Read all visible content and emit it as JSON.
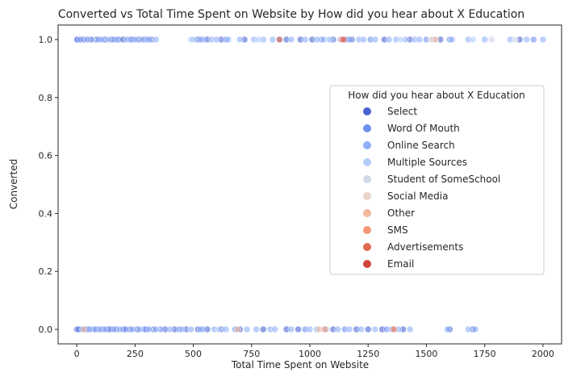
{
  "chart_data": {
    "type": "scatter",
    "title": "Converted vs Total Time Spent on Website by How did you hear about X Education",
    "xlabel": "Total Time Spent on Website",
    "ylabel": "Converted",
    "xlim": [
      -80,
      2080
    ],
    "ylim": [
      -0.05,
      1.05
    ],
    "xticks": [
      0,
      250,
      500,
      750,
      1000,
      1250,
      1500,
      1750,
      2000
    ],
    "xtick_labels": [
      "0",
      "250",
      "500",
      "750",
      "1000",
      "1250",
      "1500",
      "1750",
      "2000"
    ],
    "yticks": [
      0.0,
      0.2,
      0.4,
      0.6,
      0.8,
      1.0
    ],
    "ytick_labels": [
      "0.0",
      "0.2",
      "0.4",
      "0.6",
      "0.8",
      "1.0"
    ],
    "grid": false,
    "legend": {
      "title": "How did you hear about X Education",
      "placement": "center-right"
    },
    "series": [
      {
        "name": "Select",
        "color": "#4a63d3",
        "points": [
          [
            0,
            1
          ],
          [
            5,
            1
          ],
          [
            12,
            1
          ],
          [
            28,
            1
          ],
          [
            60,
            1
          ],
          [
            85,
            1
          ],
          [
            120,
            1
          ],
          [
            150,
            1
          ],
          [
            180,
            1
          ],
          [
            200,
            1
          ],
          [
            240,
            1
          ],
          [
            265,
            1
          ],
          [
            290,
            1
          ],
          [
            320,
            1
          ],
          [
            520,
            1
          ],
          [
            560,
            1
          ],
          [
            620,
            1
          ],
          [
            720,
            1
          ],
          [
            900,
            1
          ],
          [
            960,
            1
          ],
          [
            1010,
            1
          ],
          [
            1100,
            1
          ],
          [
            1180,
            1
          ],
          [
            1320,
            1
          ],
          [
            1430,
            1
          ],
          [
            1560,
            1
          ],
          [
            1900,
            1
          ],
          [
            0,
            0
          ],
          [
            3,
            0
          ],
          [
            10,
            0
          ],
          [
            20,
            0
          ],
          [
            35,
            0
          ],
          [
            50,
            0
          ],
          [
            70,
            0
          ],
          [
            90,
            0
          ],
          [
            110,
            0
          ],
          [
            130,
            0
          ],
          [
            150,
            0
          ],
          [
            170,
            0
          ],
          [
            200,
            0
          ],
          [
            230,
            0
          ],
          [
            260,
            0
          ],
          [
            300,
            0
          ],
          [
            330,
            0
          ],
          [
            380,
            0
          ],
          [
            420,
            0
          ],
          [
            470,
            0
          ],
          [
            520,
            0
          ],
          [
            560,
            0
          ],
          [
            620,
            0
          ],
          [
            700,
            0
          ],
          [
            800,
            0
          ],
          [
            900,
            0
          ],
          [
            950,
            0
          ],
          [
            1100,
            0
          ],
          [
            1200,
            0
          ],
          [
            1250,
            0
          ],
          [
            1310,
            0
          ],
          [
            1400,
            0
          ],
          [
            1600,
            0
          ],
          [
            1700,
            0
          ]
        ]
      },
      {
        "name": "Word Of Mouth",
        "color": "#6f90f0",
        "points": [
          [
            2,
            1
          ],
          [
            45,
            1
          ],
          [
            95,
            1
          ],
          [
            160,
            1
          ],
          [
            230,
            1
          ],
          [
            300,
            1
          ],
          [
            540,
            1
          ],
          [
            640,
            1
          ],
          [
            870,
            1
          ],
          [
            1050,
            1
          ],
          [
            1170,
            1
          ],
          [
            1260,
            1
          ],
          [
            1500,
            1
          ],
          [
            1600,
            1
          ],
          [
            1960,
            1
          ],
          [
            8,
            0
          ],
          [
            40,
            0
          ],
          [
            75,
            0
          ],
          [
            140,
            0
          ],
          [
            210,
            0
          ],
          [
            290,
            0
          ],
          [
            360,
            0
          ],
          [
            440,
            0
          ],
          [
            540,
            0
          ],
          [
            680,
            0
          ],
          [
            980,
            0
          ],
          [
            1150,
            0
          ],
          [
            1330,
            0
          ]
        ]
      },
      {
        "name": "Online Search",
        "color": "#8fb0f8",
        "points": [
          [
            15,
            1
          ],
          [
            65,
            1
          ],
          [
            105,
            1
          ],
          [
            135,
            1
          ],
          [
            170,
            1
          ],
          [
            215,
            1
          ],
          [
            250,
            1
          ],
          [
            280,
            1
          ],
          [
            310,
            1
          ],
          [
            340,
            1
          ],
          [
            500,
            1
          ],
          [
            530,
            1
          ],
          [
            580,
            1
          ],
          [
            600,
            1
          ],
          [
            650,
            1
          ],
          [
            700,
            1
          ],
          [
            760,
            1
          ],
          [
            800,
            1
          ],
          [
            840,
            1
          ],
          [
            920,
            1
          ],
          [
            980,
            1
          ],
          [
            1030,
            1
          ],
          [
            1060,
            1
          ],
          [
            1090,
            1
          ],
          [
            1130,
            1
          ],
          [
            1160,
            1
          ],
          [
            1210,
            1
          ],
          [
            1230,
            1
          ],
          [
            1280,
            1
          ],
          [
            1340,
            1
          ],
          [
            1370,
            1
          ],
          [
            1410,
            1
          ],
          [
            1450,
            1
          ],
          [
            1470,
            1
          ],
          [
            1530,
            1
          ],
          [
            1610,
            1
          ],
          [
            1680,
            1
          ],
          [
            1750,
            1
          ],
          [
            1860,
            1
          ],
          [
            1930,
            1
          ],
          [
            2000,
            1
          ],
          [
            25,
            0
          ],
          [
            55,
            0
          ],
          [
            80,
            0
          ],
          [
            100,
            0
          ],
          [
            120,
            0
          ],
          [
            160,
            0
          ],
          [
            185,
            0
          ],
          [
            240,
            0
          ],
          [
            270,
            0
          ],
          [
            310,
            0
          ],
          [
            340,
            0
          ],
          [
            400,
            0
          ],
          [
            450,
            0
          ],
          [
            490,
            0
          ],
          [
            530,
            0
          ],
          [
            590,
            0
          ],
          [
            640,
            0
          ],
          [
            730,
            0
          ],
          [
            770,
            0
          ],
          [
            830,
            0
          ],
          [
            850,
            0
          ],
          [
            920,
            0
          ],
          [
            1000,
            0
          ],
          [
            1030,
            0
          ],
          [
            1070,
            0
          ],
          [
            1120,
            0
          ],
          [
            1170,
            0
          ],
          [
            1220,
            0
          ],
          [
            1280,
            0
          ],
          [
            1350,
            0
          ],
          [
            1380,
            0
          ],
          [
            1430,
            0
          ],
          [
            1590,
            0
          ],
          [
            1680,
            0
          ],
          [
            1710,
            0
          ]
        ]
      },
      {
        "name": "Multiple Sources",
        "color": "#b3cdfb",
        "points": [
          [
            490,
            1
          ],
          [
            780,
            1
          ],
          [
            1080,
            1
          ],
          [
            1390,
            1
          ],
          [
            1700,
            1
          ],
          [
            490,
            0
          ],
          [
            610,
            0
          ],
          [
            1060,
            0
          ]
        ]
      },
      {
        "name": "Student of SomeSchool",
        "color": "#d1dae9",
        "points": [
          [
            1780,
            1
          ],
          [
            1880,
            1
          ]
        ]
      },
      {
        "name": "Social Media",
        "color": "#e9d5cb",
        "points": [
          [
            1520,
            1
          ],
          [
            1360,
            0
          ]
        ]
      },
      {
        "name": "Other",
        "color": "#f2b89c",
        "points": [
          [
            1540,
            1
          ],
          [
            30,
            0
          ],
          [
            690,
            0
          ],
          [
            1040,
            0
          ]
        ]
      },
      {
        "name": "SMS",
        "color": "#f4987a",
        "points": [
          [
            1135,
            1
          ],
          [
            1065,
            0
          ]
        ]
      },
      {
        "name": "Advertisements",
        "color": "#e26952",
        "points": [
          [
            870,
            1
          ],
          [
            1360,
            0
          ]
        ]
      },
      {
        "name": "Email",
        "color": "#cf453c",
        "points": [
          [
            1145,
            1
          ]
        ]
      }
    ]
  }
}
